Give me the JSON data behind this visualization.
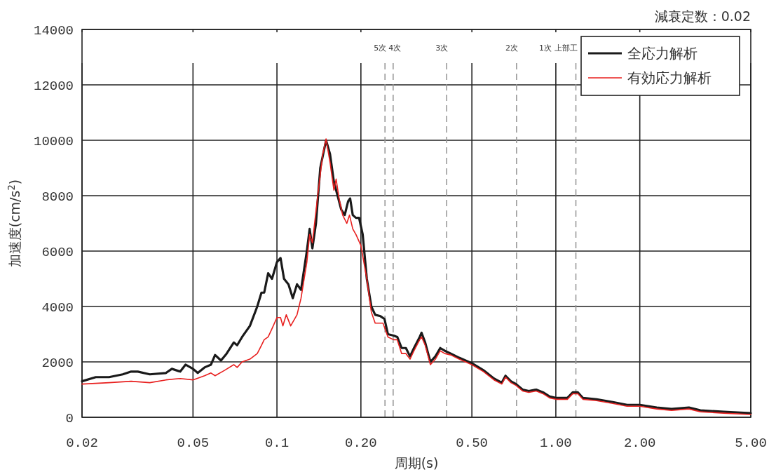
{
  "chart_data": {
    "type": "line",
    "title": "減衰定数：0.02",
    "xlabel": "周期(s)",
    "ylabel": "加速度(cm/s$^{2}$)",
    "log": "x",
    "grid": true,
    "legend": "top right",
    "line_style": "solid",
    "marker": "none",
    "xlim": [
      0.02,
      5
    ],
    "ylim": [
      0,
      14000
    ],
    "xticks": [
      0.02,
      0.05,
      0.1,
      {
        "value": 0.2,
        "label": "0.20"
      },
      {
        "value": 0.5,
        "label": "0.50"
      },
      {
        "value": 1,
        "label": "1.00"
      },
      {
        "value": 2,
        "label": "2.00"
      },
      {
        "value": 5,
        "label": "5.00"
      }
    ],
    "yticks": [
      0,
      2000,
      4000,
      6000,
      8000,
      10000,
      12000,
      14000
    ],
    "ref_lines": [
      {
        "axis": "x",
        "value": 0.244,
        "label": "5次",
        "color": "#999999",
        "line_style": "dashed"
      },
      {
        "axis": "x",
        "value": 0.261,
        "label": "4次",
        "color": "#999999",
        "line_style": "dashed"
      },
      {
        "axis": "x",
        "value": 0.406,
        "label": "3次",
        "color": "#999999",
        "line_style": "dashed"
      },
      {
        "axis": "x",
        "value": 0.723,
        "label": "2次",
        "color": "#999999",
        "line_style": "dashed"
      },
      {
        "axis": "x",
        "value": 1.18,
        "label": "1次 上部工",
        "color": "#999999",
        "line_style": "dashed"
      }
    ],
    "series": [
      {
        "name": "全応力解析",
        "color": "#1a1a1a",
        "x": [
          0.02,
          0.0224,
          0.025,
          0.028,
          0.03,
          0.0317,
          0.035,
          0.04,
          0.042,
          0.045,
          0.047,
          0.05,
          0.052,
          0.055,
          0.058,
          0.06,
          0.063,
          0.066,
          0.07,
          0.072,
          0.075,
          0.08,
          0.085,
          0.088,
          0.09,
          0.093,
          0.096,
          0.1,
          0.103,
          0.106,
          0.11,
          0.114,
          0.118,
          0.122,
          0.128,
          0.131,
          0.134,
          0.138,
          0.143,
          0.15,
          0.155,
          0.16,
          0.165,
          0.17,
          0.175,
          0.18,
          0.183,
          0.187,
          0.192,
          0.197,
          0.203,
          0.21,
          0.218,
          0.225,
          0.235,
          0.243,
          0.25,
          0.262,
          0.27,
          0.28,
          0.29,
          0.3,
          0.31,
          0.325,
          0.33,
          0.34,
          0.355,
          0.37,
          0.385,
          0.4,
          0.42,
          0.45,
          0.5,
          0.55,
          0.6,
          0.64,
          0.66,
          0.69,
          0.72,
          0.76,
          0.8,
          0.85,
          0.9,
          0.95,
          1.0,
          1.1,
          1.15,
          1.2,
          1.25,
          1.4,
          1.6,
          1.8,
          2.0,
          2.3,
          2.6,
          3.0,
          3.3,
          4.0,
          5.0
        ],
        "values": [
          1300,
          1450,
          1450,
          1550,
          1650,
          1650,
          1550,
          1600,
          1750,
          1650,
          1900,
          1750,
          1600,
          1800,
          1900,
          2250,
          2050,
          2300,
          2700,
          2600,
          2900,
          3300,
          4000,
          4500,
          4500,
          5200,
          5000,
          5600,
          5750,
          5000,
          4800,
          4300,
          4800,
          4600,
          6000,
          6800,
          6100,
          7000,
          9000,
          10000,
          9500,
          8500,
          8000,
          7500,
          7300,
          7800,
          7900,
          7300,
          7200,
          7200,
          6600,
          5000,
          4000,
          3700,
          3650,
          3550,
          3000,
          2950,
          2900,
          2500,
          2500,
          2200,
          2500,
          2900,
          3050,
          2700,
          2000,
          2200,
          2500,
          2400,
          2300,
          2150,
          1950,
          1700,
          1400,
          1250,
          1500,
          1300,
          1200,
          1000,
          950,
          1000,
          900,
          750,
          700,
          700,
          900,
          900,
          700,
          650,
          550,
          450,
          450,
          350,
          300,
          350,
          250,
          200,
          150
        ]
      },
      {
        "name": "有効応力解析",
        "color": "#e8201f",
        "x": [
          0.02,
          0.025,
          0.03,
          0.035,
          0.04,
          0.045,
          0.05,
          0.055,
          0.058,
          0.06,
          0.065,
          0.07,
          0.072,
          0.075,
          0.08,
          0.085,
          0.088,
          0.09,
          0.093,
          0.096,
          0.1,
          0.103,
          0.105,
          0.108,
          0.112,
          0.118,
          0.122,
          0.128,
          0.131,
          0.134,
          0.14,
          0.146,
          0.15,
          0.155,
          0.16,
          0.163,
          0.167,
          0.172,
          0.178,
          0.182,
          0.187,
          0.192,
          0.2,
          0.21,
          0.218,
          0.225,
          0.24,
          0.25,
          0.262,
          0.27,
          0.28,
          0.29,
          0.3,
          0.31,
          0.325,
          0.33,
          0.34,
          0.355,
          0.37,
          0.385,
          0.4,
          0.42,
          0.45,
          0.5,
          0.55,
          0.6,
          0.64,
          0.66,
          0.69,
          0.72,
          0.76,
          0.8,
          0.85,
          0.9,
          0.95,
          1.0,
          1.1,
          1.15,
          1.2,
          1.25,
          1.4,
          1.6,
          1.8,
          2.0,
          2.3,
          2.6,
          3.0,
          3.3,
          4.0,
          5.0
        ],
        "values": [
          1200,
          1250,
          1300,
          1250,
          1350,
          1400,
          1350,
          1500,
          1600,
          1500,
          1700,
          1900,
          1800,
          2000,
          2100,
          2300,
          2600,
          2800,
          2900,
          3200,
          3600,
          3600,
          3300,
          3700,
          3300,
          3700,
          4300,
          5600,
          6600,
          6300,
          8000,
          9500,
          10050,
          9200,
          8200,
          8600,
          7900,
          7300,
          7000,
          7300,
          6800,
          6600,
          6200,
          5000,
          3800,
          3400,
          3400,
          2900,
          2800,
          2800,
          2300,
          2300,
          2100,
          2400,
          2800,
          2900,
          2600,
          1900,
          2100,
          2400,
          2300,
          2250,
          2100,
          1900,
          1650,
          1350,
          1200,
          1450,
          1250,
          1150,
          950,
          900,
          950,
          850,
          700,
          650,
          650,
          850,
          850,
          650,
          600,
          500,
          400,
          400,
          300,
          250,
          300,
          200,
          150,
          100
        ]
      }
    ]
  }
}
